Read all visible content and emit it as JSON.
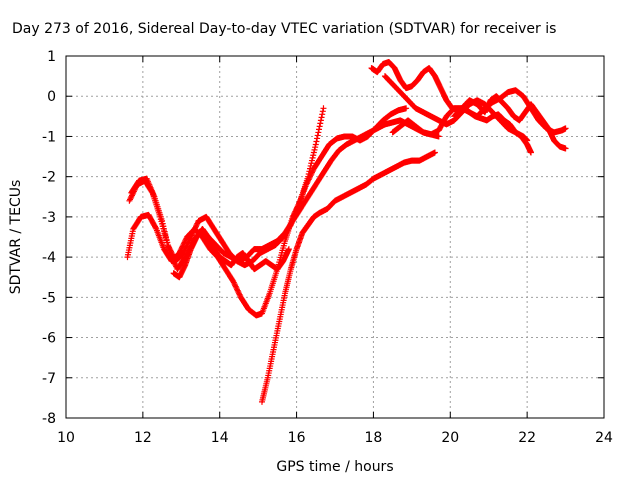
{
  "chart_data": {
    "type": "scatter",
    "title": "Day 273 of 2016, Sidereal Day-to-day VTEC variation (SDTVAR) for receiver is",
    "xlabel": "GPS time / hours",
    "ylabel": "SDTVAR / TECUs",
    "xlim": [
      10,
      24
    ],
    "ylim": [
      -8,
      1
    ],
    "x_ticks": [
      10,
      12,
      14,
      16,
      18,
      20,
      22,
      24
    ],
    "y_ticks": [
      1,
      0,
      -1,
      -2,
      -3,
      -4,
      -5,
      -6,
      -7,
      -8
    ],
    "grid": true,
    "legend": "none",
    "marker": "plus",
    "marker_color": "#ff0000",
    "series": [
      {
        "x": [
          11.6,
          11.75,
          11.95,
          12.15,
          12.35,
          12.55,
          12.75,
          12.95,
          13.15,
          13.35,
          13.55,
          13.75,
          13.95,
          14.15,
          14.35,
          14.55,
          14.75,
          14.95,
          15.1,
          15.3,
          15.5,
          15.7,
          15.9,
          16.1,
          16.3,
          16.5,
          16.7
        ],
        "y": [
          -4.0,
          -3.3,
          -3.0,
          -2.95,
          -3.3,
          -3.8,
          -4.1,
          -3.9,
          -3.5,
          -3.3,
          -3.5,
          -3.8,
          -4.0,
          -4.3,
          -4.6,
          -5.0,
          -5.3,
          -5.45,
          -5.4,
          -4.9,
          -4.3,
          -3.6,
          -3.0,
          -2.6,
          -2.0,
          -1.2,
          -0.3
        ]
      },
      {
        "x": [
          11.65,
          11.85,
          12.05,
          12.25,
          12.45,
          12.65,
          12.85,
          13.05,
          13.25,
          13.45,
          13.65,
          13.85,
          14.05,
          14.25,
          14.45,
          14.65,
          14.85,
          15.05,
          15.25,
          15.45,
          15.65,
          15.85,
          16.05,
          16.25,
          16.45,
          16.65,
          16.85,
          17.05,
          17.25,
          17.45,
          17.65,
          17.85,
          18.05,
          18.25,
          18.45,
          18.65,
          18.85
        ],
        "y": [
          -2.6,
          -2.2,
          -2.1,
          -2.4,
          -3.0,
          -3.7,
          -4.1,
          -3.9,
          -3.5,
          -3.1,
          -3.0,
          -3.3,
          -3.6,
          -3.9,
          -4.1,
          -4.2,
          -4.1,
          -3.9,
          -3.8,
          -3.7,
          -3.5,
          -3.2,
          -2.7,
          -2.2,
          -1.8,
          -1.5,
          -1.2,
          -1.05,
          -1.0,
          -1.0,
          -1.1,
          -1.0,
          -0.8,
          -0.6,
          -0.45,
          -0.35,
          -0.3
        ]
      },
      {
        "x": [
          11.7,
          11.9,
          12.1,
          12.3,
          12.5,
          12.7,
          12.9,
          13.1,
          13.3,
          13.5,
          13.7,
          13.9,
          14.1,
          14.3,
          14.5,
          14.7,
          14.9,
          15.1,
          15.3,
          15.5,
          15.7,
          15.9,
          16.1,
          16.3,
          16.5,
          16.7,
          16.9,
          17.1,
          17.3,
          17.5,
          17.7,
          17.9,
          18.1,
          18.3,
          18.5,
          18.7,
          18.9,
          19.1,
          19.3,
          19.5,
          19.7
        ],
        "y": [
          -2.4,
          -2.1,
          -2.05,
          -2.5,
          -3.1,
          -3.9,
          -4.3,
          -4.0,
          -3.6,
          -3.4,
          -3.5,
          -3.7,
          -3.9,
          -4.0,
          -4.1,
          -4.0,
          -3.8,
          -3.8,
          -3.7,
          -3.6,
          -3.4,
          -3.1,
          -2.8,
          -2.5,
          -2.2,
          -1.9,
          -1.6,
          -1.35,
          -1.2,
          -1.1,
          -1.0,
          -0.9,
          -0.8,
          -0.7,
          -0.65,
          -0.6,
          -0.7,
          -0.8,
          -0.9,
          -0.95,
          -1.0
        ]
      },
      {
        "x": [
          15.1,
          15.25,
          15.4,
          15.55,
          15.7,
          15.85,
          16.0,
          16.15,
          16.3,
          16.45,
          16.6,
          16.8,
          17.0,
          17.2,
          17.4,
          17.6,
          17.8,
          18.0,
          18.2,
          18.4,
          18.6,
          18.8,
          19.0,
          19.2,
          19.4,
          19.6
        ],
        "y": [
          -7.6,
          -7.0,
          -6.3,
          -5.6,
          -4.9,
          -4.3,
          -3.8,
          -3.4,
          -3.2,
          -3.0,
          -2.9,
          -2.8,
          -2.6,
          -2.5,
          -2.4,
          -2.3,
          -2.2,
          -2.05,
          -1.95,
          -1.85,
          -1.75,
          -1.65,
          -1.6,
          -1.6,
          -1.5,
          -1.4
        ]
      },
      {
        "x": [
          17.95,
          18.1,
          18.25,
          18.4,
          18.55,
          18.7,
          18.85,
          19.0,
          19.15,
          19.3,
          19.45,
          19.6,
          19.75,
          19.9,
          20.05,
          20.2,
          20.35,
          20.5,
          20.65,
          20.8,
          20.95,
          21.1,
          21.25,
          21.4,
          21.55,
          21.7,
          21.85,
          22.0,
          22.1
        ],
        "y": [
          0.7,
          0.6,
          0.8,
          0.85,
          0.7,
          0.4,
          0.2,
          0.25,
          0.4,
          0.6,
          0.7,
          0.5,
          0.2,
          -0.1,
          -0.3,
          -0.35,
          -0.3,
          -0.4,
          -0.5,
          -0.55,
          -0.6,
          -0.5,
          -0.45,
          -0.6,
          -0.7,
          -0.9,
          -1.0,
          -1.2,
          -1.4
        ]
      },
      {
        "x": [
          18.3,
          18.5,
          18.7,
          18.9,
          19.1,
          19.3,
          19.5,
          19.7,
          19.9,
          20.1,
          20.3,
          20.5,
          20.7,
          20.9,
          21.1,
          21.3,
          21.5,
          21.7,
          21.9,
          22.0
        ],
        "y": [
          0.5,
          0.3,
          0.1,
          -0.1,
          -0.3,
          -0.4,
          -0.5,
          -0.6,
          -0.7,
          -0.6,
          -0.4,
          -0.2,
          -0.1,
          -0.2,
          -0.4,
          -0.6,
          -0.8,
          -0.9,
          -1.0,
          -1.1
        ]
      },
      {
        "x": [
          18.5,
          18.7,
          18.9,
          19.1,
          19.3,
          19.5,
          19.7,
          19.9,
          20.1,
          20.3,
          20.5,
          20.7,
          20.9,
          21.1,
          21.3,
          21.5,
          21.7,
          21.9,
          22.1,
          22.3,
          22.5,
          22.7,
          22.9,
          23.0
        ],
        "y": [
          -0.9,
          -0.75,
          -0.6,
          -0.75,
          -0.9,
          -0.95,
          -0.85,
          -0.5,
          -0.3,
          -0.3,
          -0.4,
          -0.5,
          -0.3,
          -0.15,
          -0.05,
          0.1,
          0.15,
          0.0,
          -0.3,
          -0.6,
          -0.8,
          -0.9,
          -0.85,
          -0.8
        ]
      },
      {
        "x": [
          20.1,
          20.3,
          20.5,
          20.7,
          20.9,
          21.05,
          21.2,
          21.35,
          21.5,
          21.65,
          21.8,
          21.95,
          22.1,
          22.25,
          22.4,
          22.55,
          22.7,
          22.85,
          23.0
        ],
        "y": [
          -0.5,
          -0.3,
          -0.1,
          -0.2,
          -0.4,
          -0.1,
          0.0,
          -0.15,
          -0.3,
          -0.5,
          -0.6,
          -0.4,
          -0.2,
          -0.4,
          -0.6,
          -0.8,
          -1.1,
          -1.25,
          -1.3
        ]
      },
      {
        "x": [
          12.8,
          12.95,
          13.1,
          13.25,
          13.4,
          13.55,
          13.7,
          13.85,
          14.0,
          14.15,
          14.3,
          14.45,
          14.6,
          14.75,
          14.9,
          15.05,
          15.2,
          15.35,
          15.5,
          15.65,
          15.8
        ],
        "y": [
          -4.4,
          -4.5,
          -4.2,
          -3.8,
          -3.5,
          -3.3,
          -3.5,
          -3.8,
          -4.0,
          -4.1,
          -4.2,
          -4.0,
          -3.9,
          -4.1,
          -4.3,
          -4.2,
          -4.1,
          -4.2,
          -4.3,
          -4.1,
          -3.8
        ]
      }
    ]
  }
}
